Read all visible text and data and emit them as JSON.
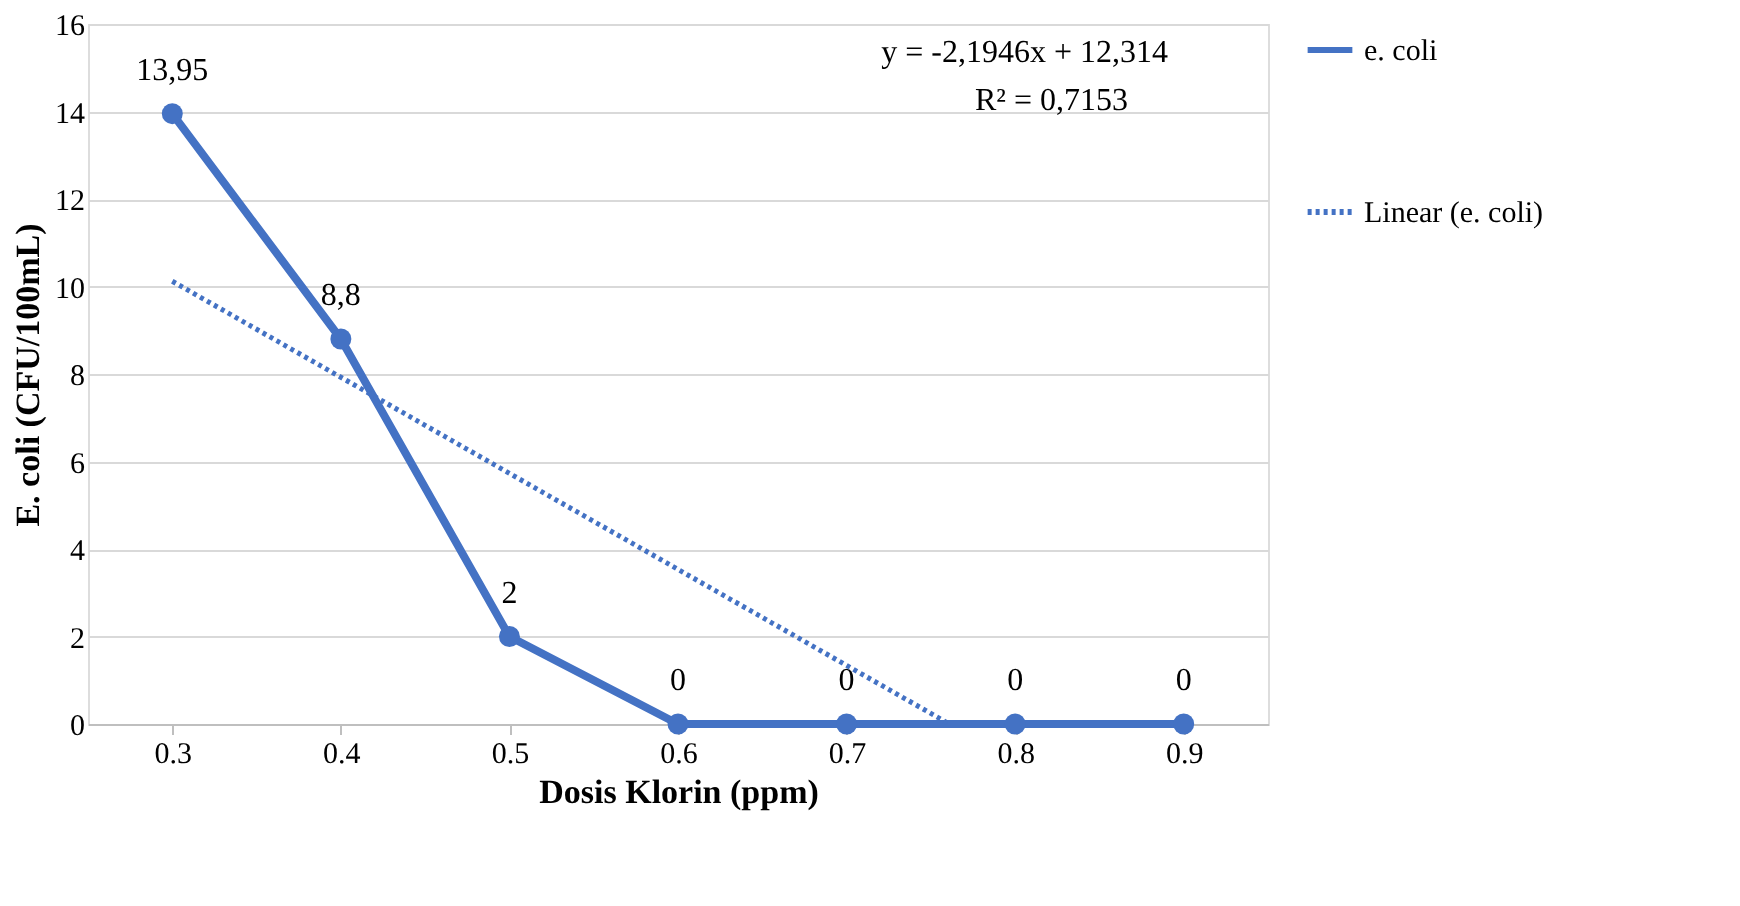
{
  "chart_data": {
    "type": "line",
    "xlabel": "Dosis Klorin (ppm)",
    "ylabel": "E. coli (CFU/100mL)",
    "x": [
      0.3,
      0.4,
      0.5,
      0.6,
      0.7,
      0.8,
      0.9
    ],
    "xlim": [
      0.25,
      0.95
    ],
    "xticks": [
      0.3,
      0.4,
      0.5,
      0.6,
      0.7,
      0.8,
      0.9
    ],
    "ylim": [
      0,
      16
    ],
    "yticks": [
      0,
      2,
      4,
      6,
      8,
      10,
      12,
      14,
      16
    ],
    "series": [
      {
        "name": "e. coli",
        "color": "#4472c4",
        "values": [
          13.95,
          8.8,
          2,
          0,
          0,
          0,
          0
        ],
        "marker": "circle",
        "line_style": "solid",
        "value_labels": [
          "13,95",
          "8,8",
          "2",
          "0",
          "0",
          "0",
          "0"
        ]
      },
      {
        "name": "Linear (e. coli)",
        "color": "#4472c4",
        "type": "line",
        "x": [
          0.3,
          0.761
        ],
        "values": [
          10.12,
          0
        ],
        "marker": "none",
        "line_style": "dotted"
      }
    ],
    "annotations": [
      "y = -2,1946x + 12,314",
      "R² = 0,7153"
    ],
    "grid": "y",
    "legend": "right"
  }
}
